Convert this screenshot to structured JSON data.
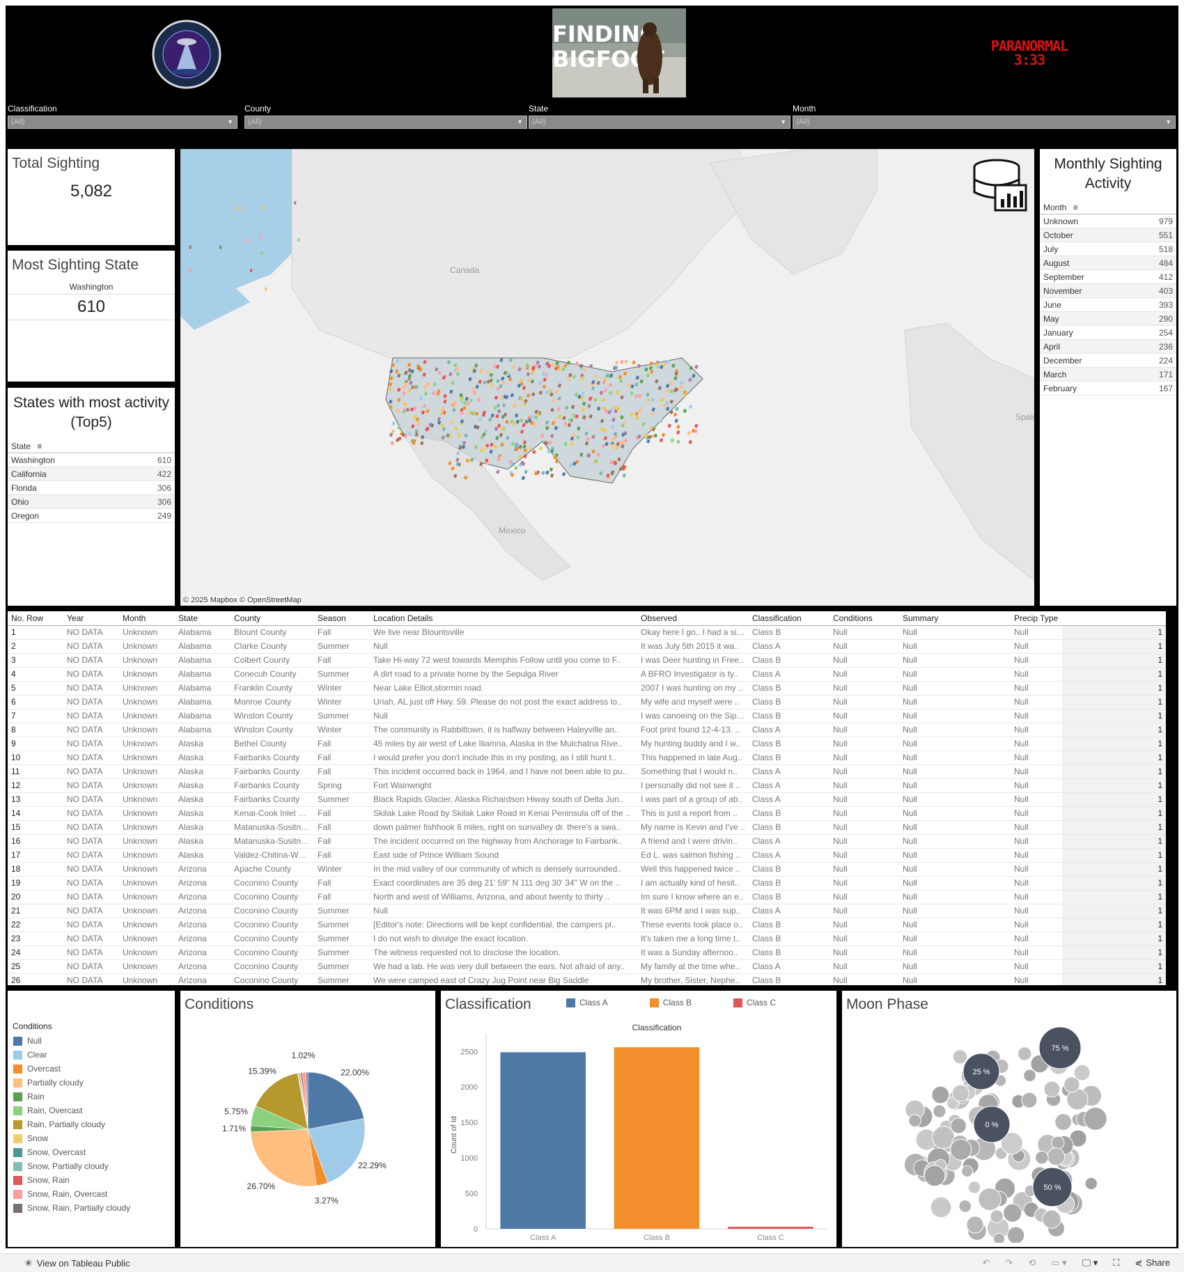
{
  "header": {
    "logo_left_alt": "paranormal.com",
    "logo_center_text": [
      "FINDING",
      "BIGFOOT"
    ],
    "logo_right_text": [
      "PARANORMAL",
      "3:33"
    ]
  },
  "filters": [
    {
      "label": "Classification",
      "value": "(All)"
    },
    {
      "label": "County",
      "value": "(All)"
    },
    {
      "label": "State",
      "value": "(All)"
    },
    {
      "label": "Month",
      "value": "(All)"
    }
  ],
  "total_sighting": {
    "title": "Total Sighting",
    "value": "5,082"
  },
  "most_state": {
    "title": "Most Sighting State",
    "state": "Washington",
    "value": "610"
  },
  "top5": {
    "title": "States with most activity (Top5)",
    "header": "State",
    "rows": [
      {
        "state": "Washington",
        "value": "610"
      },
      {
        "state": "California",
        "value": "422"
      },
      {
        "state": "Florida",
        "value": "306"
      },
      {
        "state": "Ohio",
        "value": "306"
      },
      {
        "state": "Oregon",
        "value": "249"
      }
    ]
  },
  "map": {
    "labels": {
      "canada": "Canada",
      "mexico": "Mexico",
      "spain": "Spain"
    },
    "attribution": "© 2025 Mapbox  © OpenStreetMap"
  },
  "monthly": {
    "title": "Monthly Sighting Activity",
    "header": "Month",
    "rows": [
      {
        "month": "Unknown",
        "value": "979"
      },
      {
        "month": "October",
        "value": "551"
      },
      {
        "month": "July",
        "value": "518"
      },
      {
        "month": "August",
        "value": "484"
      },
      {
        "month": "September",
        "value": "412"
      },
      {
        "month": "November",
        "value": "403"
      },
      {
        "month": "June",
        "value": "393"
      },
      {
        "month": "May",
        "value": "290"
      },
      {
        "month": "January",
        "value": "254"
      },
      {
        "month": "April",
        "value": "236"
      },
      {
        "month": "December",
        "value": "224"
      },
      {
        "month": "March",
        "value": "171"
      },
      {
        "month": "February",
        "value": "167"
      }
    ]
  },
  "table": {
    "columns": [
      "No. Row",
      "Year",
      "Month",
      "State",
      "County",
      "Season",
      "Location Details",
      "Observed",
      "Classification",
      "Conditions",
      "Summary",
      "Precip Type",
      ""
    ],
    "rows": [
      [
        "1",
        "NO DATA",
        "Unknown",
        "Alabama",
        "Blount County",
        "Fall",
        "We live near Blountsville",
        "Okay here I go.. I had a sig..",
        "Class B",
        "Null",
        "Null",
        "Null",
        "1"
      ],
      [
        "2",
        "NO DATA",
        "Unknown",
        "Alabama",
        "Clarke County",
        "Summer",
        "Null",
        "It was July 5th 2015 it wa..",
        "Class A",
        "Null",
        "Null",
        "Null",
        "1"
      ],
      [
        "3",
        "NO DATA",
        "Unknown",
        "Alabama",
        "Colbert County",
        "Fall",
        "Take Hi-way 72 west towards Memphis Follow until you come to F..",
        "I was Deer hunting in Free..",
        "Class B",
        "Null",
        "Null",
        "Null",
        "1"
      ],
      [
        "4",
        "NO DATA",
        "Unknown",
        "Alabama",
        "Conecuh County",
        "Summer",
        "A dirt road to a private home by the Sepulga River",
        "A BFRO Investigator is ty..",
        "Class A",
        "Null",
        "Null",
        "Null",
        "1"
      ],
      [
        "5",
        "NO DATA",
        "Unknown",
        "Alabama",
        "Franklin County",
        "Winter",
        "Near Lake Elliot,stormin road.",
        "2007 I was hunting on my ..",
        "Class B",
        "Null",
        "Null",
        "Null",
        "1"
      ],
      [
        "6",
        "NO DATA",
        "Unknown",
        "Alabama",
        "Monroe County",
        "Winter",
        "Uriah, AL  just off Hwy. 59. Please do not post the exact address lo..",
        "My wife and myself were ..",
        "Class B",
        "Null",
        "Null",
        "Null",
        "1"
      ],
      [
        "7",
        "NO DATA",
        "Unknown",
        "Alabama",
        "Winston County",
        "Summer",
        "Null",
        "I was canoeing on the Sips..",
        "Class B",
        "Null",
        "Null",
        "Null",
        "1"
      ],
      [
        "8",
        "NO DATA",
        "Unknown",
        "Alabama",
        "Winston County",
        "Winter",
        "The community is Rabbittown, it is halfway between Haleyville an..",
        "Foot print found 12-4-13. ..",
        "Class A",
        "Null",
        "Null",
        "Null",
        "1"
      ],
      [
        "9",
        "NO DATA",
        "Unknown",
        "Alaska",
        "Bethel County",
        "Fall",
        "45 miles by air west of Lake Iliamna, Alaska in the Mulchatna Rive..",
        "My hunting buddy and I w..",
        "Class B",
        "Null",
        "Null",
        "Null",
        "1"
      ],
      [
        "10",
        "NO DATA",
        "Unknown",
        "Alaska",
        "Fairbanks County",
        "Fall",
        "I would prefer you don't include this in my posting, as I still hunt t..",
        "This happened in late Aug..",
        "Class B",
        "Null",
        "Null",
        "Null",
        "1"
      ],
      [
        "11",
        "NO DATA",
        "Unknown",
        "Alaska",
        "Fairbanks County",
        "Fall",
        "This incident occurred back in 1964, and I have not been able to pu..",
        "Something that I would n..",
        "Class A",
        "Null",
        "Null",
        "Null",
        "1"
      ],
      [
        "12",
        "NO DATA",
        "Unknown",
        "Alaska",
        "Fairbanks County",
        "Spring",
        "Fort Wainwright",
        "I personally did not see it ..",
        "Class A",
        "Null",
        "Null",
        "Null",
        "1"
      ],
      [
        "13",
        "NO DATA",
        "Unknown",
        "Alaska",
        "Fairbanks County",
        "Summer",
        "Black Rapids Glacier, Alaska Richardson Hiway south of Delta Jun..",
        "I was part of a group of ab..",
        "Class A",
        "Null",
        "Null",
        "Null",
        "1"
      ],
      [
        "14",
        "NO DATA",
        "Unknown",
        "Alaska",
        "Kenai-Cook Inlet County",
        "Fall",
        "Skilak Lake Road by Skilak Lake Road in Kenai Peninsula off of the ..",
        "This is just a report from ..",
        "Class B",
        "Null",
        "Null",
        "Null",
        "1"
      ],
      [
        "15",
        "NO DATA",
        "Unknown",
        "Alaska",
        "Matanuska-Susitna County",
        "Fall",
        "down palmer fishhook 6 miles, right on sunvalley dr. there's a swa..",
        "My name is Kevin and I've ..",
        "Class B",
        "Null",
        "Null",
        "Null",
        "1"
      ],
      [
        "16",
        "NO DATA",
        "Unknown",
        "Alaska",
        "Matanuska-Susitna County",
        "Fall",
        "The incident occurred on the highway from Anchorage to Fairbank..",
        "A friend and I were drivin..",
        "Class A",
        "Null",
        "Null",
        "Null",
        "1"
      ],
      [
        "17",
        "NO DATA",
        "Unknown",
        "Alaska",
        "Valdez-Chitina-Whittier C..",
        "Fall",
        "East side of Prince William Sound",
        "Ed L. was salmon fishing ..",
        "Class A",
        "Null",
        "Null",
        "Null",
        "1"
      ],
      [
        "18",
        "NO DATA",
        "Unknown",
        "Arizona",
        "Apache County",
        "Winter",
        "In the mid valley of our community of which is densely surrounded..",
        "Well this happened twice ..",
        "Class B",
        "Null",
        "Null",
        "Null",
        "1"
      ],
      [
        "19",
        "NO DATA",
        "Unknown",
        "Arizona",
        "Coconino County",
        "Fall",
        "Exact coordinates are 35 deg 21' 59\" N  111 deg 30' 34\" W on the ..",
        "I am actually kind of hesit..",
        "Class B",
        "Null",
        "Null",
        "Null",
        "1"
      ],
      [
        "20",
        "NO DATA",
        "Unknown",
        "Arizona",
        "Coconino County",
        "Fall",
        "North and west of Williams, Arizona, and about twenty to thirty ..",
        "Im sure I know where an e..",
        "Class B",
        "Null",
        "Null",
        "Null",
        "1"
      ],
      [
        "21",
        "NO DATA",
        "Unknown",
        "Arizona",
        "Coconino County",
        "Summer",
        "Null",
        "It was 6PM and I was sup..",
        "Class A",
        "Null",
        "Null",
        "Null",
        "1"
      ],
      [
        "22",
        "NO DATA",
        "Unknown",
        "Arizona",
        "Coconino County",
        "Summer",
        "[Editor's note: Directions will be kept confidential, the campers pl..",
        "These events took place o..",
        "Class B",
        "Null",
        "Null",
        "Null",
        "1"
      ],
      [
        "23",
        "NO DATA",
        "Unknown",
        "Arizona",
        "Coconino County",
        "Summer",
        "I do not wish to divulge the exact location.",
        "It's taken me a long time t..",
        "Class B",
        "Null",
        "Null",
        "Null",
        "1"
      ],
      [
        "24",
        "NO DATA",
        "Unknown",
        "Arizona",
        "Coconino County",
        "Summer",
        "The witness requested not to disclose the location.",
        "It was a Sunday afternoo..",
        "Class B",
        "Null",
        "Null",
        "Null",
        "1"
      ],
      [
        "25",
        "NO DATA",
        "Unknown",
        "Arizona",
        "Coconino County",
        "Summer",
        "We had a lab. He was very dull between the ears. Not afraid of any..",
        "My family at the time whe..",
        "Class A",
        "Null",
        "Null",
        "Null",
        "1"
      ],
      [
        "26",
        "NO DATA",
        "Unknown",
        "Arizona",
        "Coconino County",
        "Summer",
        "We were camped east of Crazy Jug Point near Big Saddle",
        "My brother, Sister, Nephe..",
        "Class B",
        "Null",
        "Null",
        "Null",
        "1"
      ]
    ]
  },
  "legend": {
    "title": "Conditions",
    "items": [
      {
        "label": "Null",
        "color": "#4e79a7"
      },
      {
        "label": "Clear",
        "color": "#a0cbe8"
      },
      {
        "label": "Overcast",
        "color": "#f28e2b"
      },
      {
        "label": "Partially cloudy",
        "color": "#ffbe7d"
      },
      {
        "label": "Rain",
        "color": "#59a14f"
      },
      {
        "label": "Rain, Overcast",
        "color": "#8cd17d"
      },
      {
        "label": "Rain, Partially cloudy",
        "color": "#b6992d"
      },
      {
        "label": "Snow",
        "color": "#f1ce63"
      },
      {
        "label": "Snow, Overcast",
        "color": "#499894"
      },
      {
        "label": "Snow, Partially cloudy",
        "color": "#86bcb6"
      },
      {
        "label": "Snow, Rain",
        "color": "#e15759"
      },
      {
        "label": "Snow, Rain, Overcast",
        "color": "#ff9d9a"
      },
      {
        "label": "Snow, Rain, Partially cloudy",
        "color": "#79706e"
      }
    ]
  },
  "conditions_pie": {
    "title": "Conditions",
    "slices": [
      {
        "label": "Null",
        "value": 22.0,
        "text": "22.00%",
        "color": "#4e79a7"
      },
      {
        "label": "Clear",
        "value": 22.29,
        "text": "22.29%",
        "color": "#a0cbe8"
      },
      {
        "label": "Overcast",
        "value": 3.27,
        "text": "3.27%",
        "color": "#f28e2b"
      },
      {
        "label": "Partially cloudy",
        "value": 26.7,
        "text": "26.70%",
        "color": "#ffbe7d"
      },
      {
        "label": "Rain",
        "value": 1.71,
        "text": "1.71%",
        "color": "#59a14f"
      },
      {
        "label": "Rain, Overcast",
        "value": 5.75,
        "text": "5.75%",
        "color": "#8cd17d"
      },
      {
        "label": "Rain, Partially cloudy",
        "value": 15.39,
        "text": "15.39%",
        "color": "#b6992d"
      },
      {
        "label": "Snow",
        "value": 0.3,
        "text": "",
        "color": "#f1ce63"
      },
      {
        "label": "Snow, Overcast",
        "value": 0.3,
        "text": "",
        "color": "#499894"
      },
      {
        "label": "Snow, Partially cloudy",
        "value": 0.3,
        "text": "",
        "color": "#86bcb6"
      },
      {
        "label": "Snow, Rain",
        "value": 0.5,
        "text": "",
        "color": "#e15759"
      },
      {
        "label": "Snow, Rain, Overcast",
        "value": 1.02,
        "text": "1.02%",
        "color": "#ff9d9a"
      },
      {
        "label": "Snow, Rain, Partially cloudy",
        "value": 0.47,
        "text": "",
        "color": "#79706e"
      }
    ]
  },
  "classification": {
    "title": "Classification",
    "legend": [
      {
        "label": "Class A",
        "color": "#4e79a7"
      },
      {
        "label": "Class B",
        "color": "#f28e2b"
      },
      {
        "label": "Class C",
        "color": "#e15759"
      }
    ]
  },
  "moon": {
    "title": "Moon Phase",
    "labels": [
      "75 %",
      "25 %",
      "0 %",
      "50 %"
    ]
  },
  "chart_data": {
    "type": "bar",
    "title": "Classification",
    "categories": [
      "Class A",
      "Class B",
      "Class C"
    ],
    "values": [
      2490,
      2560,
      30
    ],
    "colors": [
      "#4e79a7",
      "#f28e2b",
      "#e15759"
    ],
    "xlabel": "",
    "ylabel": "Count of Id",
    "ylim": [
      0,
      2650
    ],
    "yticks": [
      0,
      500,
      1000,
      1500,
      2000,
      2500
    ],
    "grid": false
  },
  "footer": {
    "view_label": "View on Tableau Public",
    "share_label": "Share"
  }
}
